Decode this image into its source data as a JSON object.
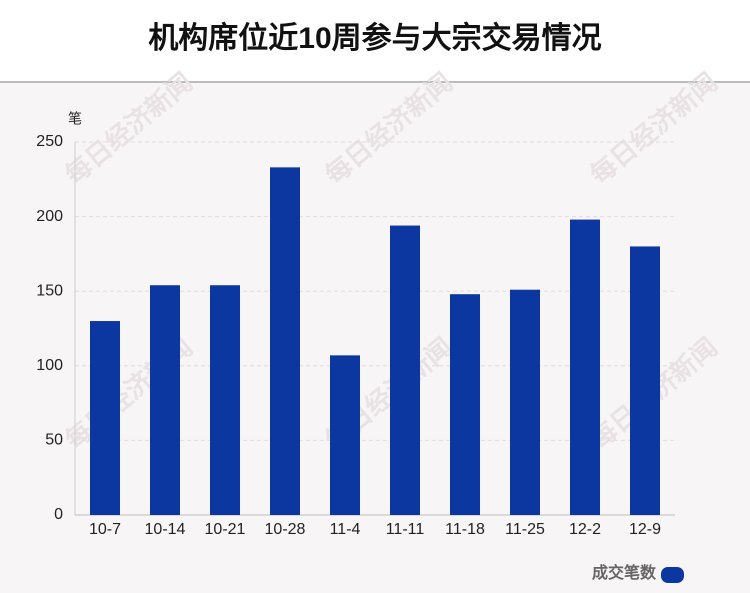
{
  "chart_data": {
    "type": "bar",
    "title": "机构席位近10周参与大宗交易情况",
    "y_label": "笔",
    "watermark": "每日经济新闻",
    "categories": [
      "10-7",
      "10-14",
      "10-21",
      "10-28",
      "11-4",
      "11-11",
      "11-18",
      "11-25",
      "12-2",
      "12-9"
    ],
    "series": [
      {
        "name": "成交笔数",
        "color": "#0d37a0",
        "values": [
          130,
          154,
          154,
          233,
          107,
          194,
          148,
          151,
          198,
          180
        ]
      }
    ],
    "ylim": [
      0,
      250
    ],
    "yticks": [
      0,
      50,
      100,
      150,
      200,
      250
    ],
    "grid": true,
    "legend": "bottom-right"
  }
}
